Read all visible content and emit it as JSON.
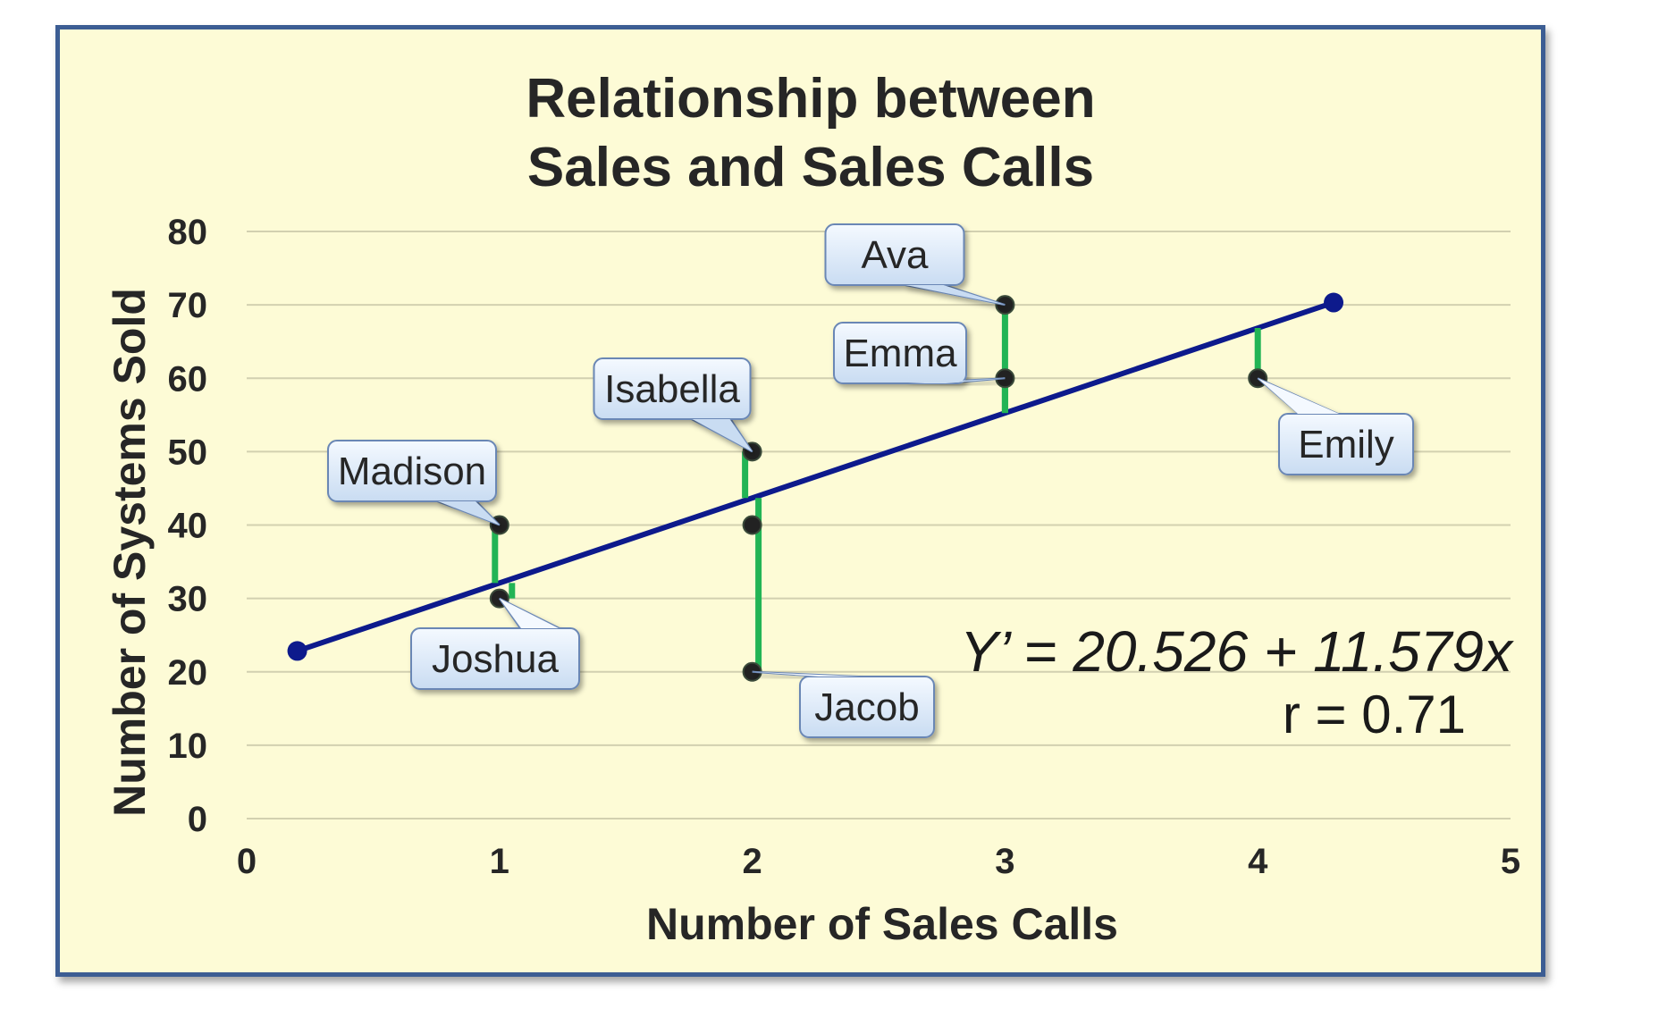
{
  "chart_data": {
    "type": "scatter",
    "title_lines": [
      "Relationship between",
      "Sales and Sales Calls"
    ],
    "xlabel": "Number of Sales Calls",
    "ylabel": "Number of Systems Sold",
    "xlim": [
      0,
      5
    ],
    "ylim": [
      0,
      80
    ],
    "x_ticks": [
      "0",
      "1",
      "2",
      "3",
      "4",
      "5"
    ],
    "y_ticks": [
      "0",
      "10",
      "20",
      "30",
      "40",
      "50",
      "60",
      "70",
      "80"
    ],
    "grid": "horizontal",
    "points": [
      {
        "name": "Madison",
        "x": 1,
        "y": 40
      },
      {
        "name": "Joshua",
        "x": 1,
        "y": 30
      },
      {
        "name": "Isabella",
        "x": 2,
        "y": 50
      },
      {
        "name": "Jacob",
        "x": 2,
        "y": 20
      },
      {
        "name": "Ava",
        "x": 3,
        "y": 70
      },
      {
        "name": "Emma",
        "x": 3,
        "y": 60
      },
      {
        "name": "Emily",
        "x": 4,
        "y": 60
      },
      {
        "name": "",
        "x": 2,
        "y": 40
      }
    ],
    "regression": {
      "intercept": 20.526,
      "slope": 11.579,
      "x_start": 0.2,
      "x_end": 4.3
    },
    "equation": "Y’ = 20.526 + 11.579x",
    "r_label": "r =  0.71",
    "colors": {
      "background": "#fdfbd6",
      "frame": "#3c5d93",
      "regression_line": "#0d1a8c",
      "residual": "#22b455",
      "point": "#222222",
      "callout_fill": "#dbe9f8",
      "callout_stroke": "#6b87b5"
    }
  }
}
